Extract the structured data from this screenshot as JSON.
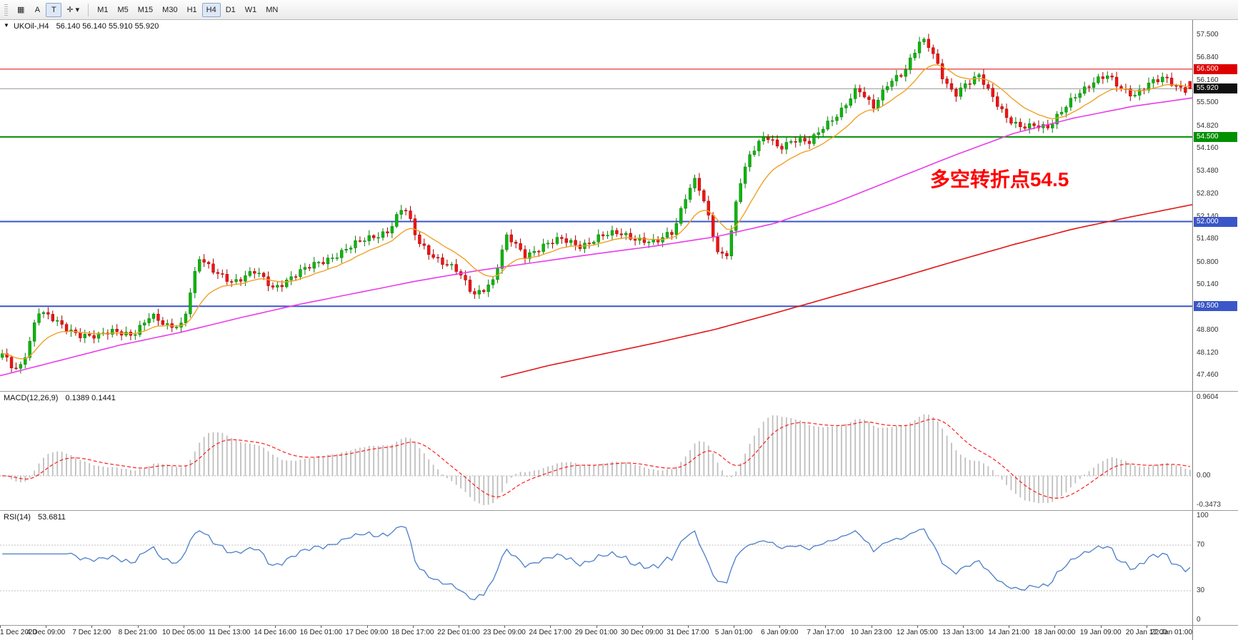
{
  "toolbar": {
    "left_buttons": [
      {
        "name": "chart-grid-button",
        "label": "▦",
        "pressed": false
      },
      {
        "name": "cursor-a-button",
        "label": "A",
        "pressed": false
      },
      {
        "name": "text-tool-button",
        "label": "T",
        "pressed": true
      },
      {
        "name": "crosshair-button",
        "label": "✛ ▾",
        "pressed": false
      }
    ],
    "timeframes": [
      "M1",
      "M5",
      "M15",
      "M30",
      "H1",
      "H4",
      "D1",
      "W1",
      "MN"
    ],
    "selected_timeframe": "H4"
  },
  "chart": {
    "header": {
      "marker": "▼",
      "symbol": "UKOil-,H4",
      "ohlc": "56.140 56.140 55.910 55.920"
    },
    "annotation": {
      "text": "多空转折点54.5",
      "color": "#ff0000"
    },
    "current_price": {
      "value": 55.92,
      "label": "55.920",
      "badge_bg": "#101010"
    },
    "levels": [
      {
        "value": 56.5,
        "label": "56.500",
        "color": "#dd0000",
        "width": 1
      },
      {
        "value": 54.5,
        "label": "54.500",
        "color": "#009000",
        "width": 2
      },
      {
        "value": 52.0,
        "label": "52.000",
        "color": "#3a56c8",
        "width": 2
      },
      {
        "value": 49.5,
        "label": "49.500",
        "color": "#3a56c8",
        "width": 2
      }
    ],
    "price_axis": [
      "57.500",
      "56.840",
      "56.160",
      "55.500",
      "54.820",
      "54.160",
      "53.480",
      "52.820",
      "52.140",
      "51.480",
      "50.800",
      "50.140",
      "49.460",
      "48.800",
      "48.120",
      "47.460"
    ]
  },
  "macd": {
    "label": "MACD(12,26,9)",
    "values": "0.1389 0.1441",
    "axis": {
      "top": "0.9604",
      "zero": "0.00",
      "bottom": "-0.3473"
    }
  },
  "rsi": {
    "label": "RSI(14)",
    "value": "53.6811",
    "axis": {
      "top": "100",
      "upper": "70",
      "lower": "30",
      "bottom": "0"
    }
  },
  "time_axis": [
    "1 Dec 2020",
    "4 Dec 09:00",
    "7 Dec 12:00",
    "8 Dec 21:00",
    "10 Dec 05:00",
    "11 Dec 13:00",
    "14 Dec 16:00",
    "16 Dec 01:00",
    "17 Dec 09:00",
    "18 Dec 17:00",
    "22 Dec 01:00",
    "23 Dec 09:00",
    "24 Dec 17:00",
    "29 Dec 01:00",
    "30 Dec 09:00",
    "31 Dec 17:00",
    "5 Jan 01:00",
    "6 Jan 09:00",
    "7 Jan 17:00",
    "10 Jan 23:00",
    "12 Jan 05:00",
    "13 Jan 13:00",
    "14 Jan 21:00",
    "18 Jan 00:00",
    "19 Jan 09:00",
    "20 Jan 17:00",
    "22 Jan 01:00"
  ],
  "colors": {
    "up_fill": "#0fb50f",
    "up_stroke": "#077d07",
    "down_fill": "#ee1515",
    "down_stroke": "#a80000",
    "ma_fast": "#efa126",
    "ma_mid": "#e93ce9",
    "ma_slow": "#e01515",
    "macd_hist": "#bfbfbf",
    "macd_signal": "#ff1a1a",
    "rsi_line": "#4a7dc9",
    "rsi_guide": "#bdbdbd",
    "current_price_line": "#9a9a9a",
    "zero_line": "#b4b4b4"
  },
  "chart_data": {
    "type": "candlestick",
    "symbol": "UKOil-",
    "timeframe": "H4",
    "title": "UKOil-,H4 56.140 56.140 55.910 55.920",
    "price_range": [
      47.0,
      57.95
    ],
    "candle_count": 260,
    "last_candle": {
      "o": 56.14,
      "h": 56.14,
      "l": 55.91,
      "c": 55.92
    },
    "price_path": [
      [
        0.0,
        48.05
      ],
      [
        0.008,
        47.7
      ],
      [
        0.014,
        47.62
      ],
      [
        0.022,
        48.35
      ],
      [
        0.03,
        49.4
      ],
      [
        0.04,
        49.15
      ],
      [
        0.052,
        48.85
      ],
      [
        0.065,
        48.7
      ],
      [
        0.08,
        48.6
      ],
      [
        0.095,
        48.75
      ],
      [
        0.11,
        48.7
      ],
      [
        0.125,
        49.2
      ],
      [
        0.138,
        48.9
      ],
      [
        0.152,
        49.0
      ],
      [
        0.16,
        50.2
      ],
      [
        0.166,
        50.9
      ],
      [
        0.176,
        50.55
      ],
      [
        0.195,
        50.25
      ],
      [
        0.213,
        50.5
      ],
      [
        0.228,
        50.05
      ],
      [
        0.245,
        50.4
      ],
      [
        0.262,
        50.7
      ],
      [
        0.285,
        51.1
      ],
      [
        0.305,
        51.45
      ],
      [
        0.325,
        51.75
      ],
      [
        0.338,
        52.45
      ],
      [
        0.35,
        51.4
      ],
      [
        0.365,
        50.95
      ],
      [
        0.382,
        50.55
      ],
      [
        0.397,
        49.85
      ],
      [
        0.413,
        50.25
      ],
      [
        0.425,
        51.55
      ],
      [
        0.44,
        51.0
      ],
      [
        0.455,
        51.3
      ],
      [
        0.47,
        51.45
      ],
      [
        0.487,
        51.3
      ],
      [
        0.503,
        51.55
      ],
      [
        0.52,
        51.65
      ],
      [
        0.536,
        51.5
      ],
      [
        0.55,
        51.35
      ],
      [
        0.565,
        51.7
      ],
      [
        0.576,
        52.85
      ],
      [
        0.584,
        53.3
      ],
      [
        0.593,
        52.3
      ],
      [
        0.603,
        50.95
      ],
      [
        0.611,
        51.1
      ],
      [
        0.62,
        53.1
      ],
      [
        0.63,
        54.0
      ],
      [
        0.643,
        54.5
      ],
      [
        0.654,
        54.2
      ],
      [
        0.666,
        54.45
      ],
      [
        0.68,
        54.3
      ],
      [
        0.693,
        54.85
      ],
      [
        0.706,
        55.3
      ],
      [
        0.72,
        55.9
      ],
      [
        0.733,
        55.35
      ],
      [
        0.746,
        56.15
      ],
      [
        0.76,
        56.4
      ],
      [
        0.772,
        57.25
      ],
      [
        0.778,
        57.35
      ],
      [
        0.785,
        56.9
      ],
      [
        0.793,
        56.2
      ],
      [
        0.802,
        55.7
      ],
      [
        0.813,
        56.05
      ],
      [
        0.823,
        56.35
      ],
      [
        0.836,
        55.6
      ],
      [
        0.846,
        55.0
      ],
      [
        0.856,
        54.75
      ],
      [
        0.87,
        54.9
      ],
      [
        0.881,
        54.8
      ],
      [
        0.893,
        55.25
      ],
      [
        0.906,
        55.8
      ],
      [
        0.92,
        56.2
      ],
      [
        0.93,
        56.3
      ],
      [
        0.941,
        55.9
      ],
      [
        0.953,
        55.75
      ],
      [
        0.965,
        56.1
      ],
      [
        0.978,
        56.2
      ],
      [
        0.989,
        55.95
      ],
      [
        1.0,
        55.92
      ]
    ],
    "ma_mid_path": [
      [
        0.0,
        47.45
      ],
      [
        0.05,
        47.9
      ],
      [
        0.1,
        48.35
      ],
      [
        0.15,
        48.72
      ],
      [
        0.2,
        49.15
      ],
      [
        0.25,
        49.55
      ],
      [
        0.3,
        49.9
      ],
      [
        0.35,
        50.25
      ],
      [
        0.4,
        50.55
      ],
      [
        0.45,
        50.8
      ],
      [
        0.5,
        51.05
      ],
      [
        0.55,
        51.28
      ],
      [
        0.6,
        51.55
      ],
      [
        0.65,
        51.95
      ],
      [
        0.7,
        52.55
      ],
      [
        0.75,
        53.25
      ],
      [
        0.8,
        53.95
      ],
      [
        0.85,
        54.6
      ],
      [
        0.9,
        55.05
      ],
      [
        0.95,
        55.4
      ],
      [
        1.0,
        55.65
      ]
    ],
    "ma_slow_path": [
      [
        0.42,
        47.4
      ],
      [
        0.46,
        47.75
      ],
      [
        0.5,
        48.05
      ],
      [
        0.55,
        48.42
      ],
      [
        0.6,
        48.82
      ],
      [
        0.65,
        49.3
      ],
      [
        0.7,
        49.8
      ],
      [
        0.75,
        50.3
      ],
      [
        0.8,
        50.82
      ],
      [
        0.85,
        51.32
      ],
      [
        0.9,
        51.78
      ],
      [
        0.95,
        52.15
      ],
      [
        1.0,
        52.5
      ]
    ],
    "macd_settings": {
      "fast": 12,
      "slow": 26,
      "signal": 9,
      "display_range": [
        -0.4,
        0.98
      ]
    },
    "rsi_settings": {
      "period": 14,
      "range": [
        0,
        100
      ],
      "guides": [
        70,
        30
      ]
    }
  }
}
